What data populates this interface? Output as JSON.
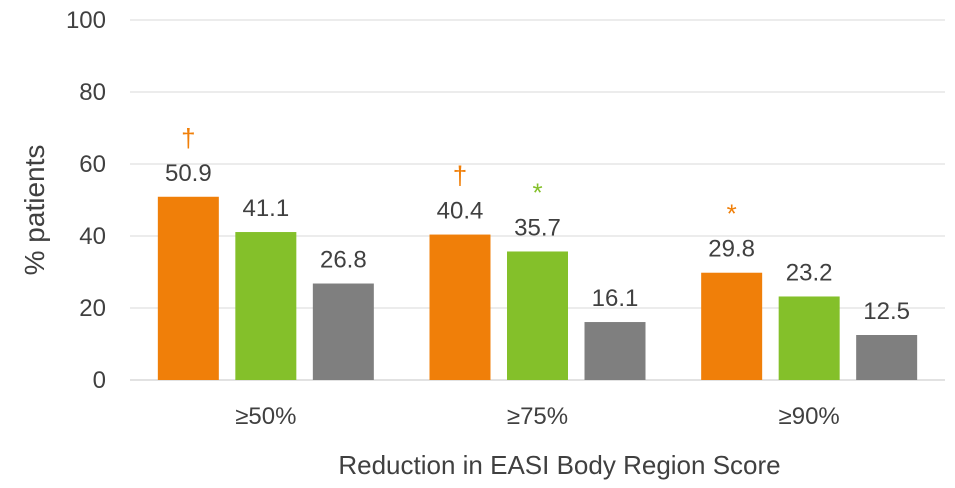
{
  "chart_data": {
    "type": "bar",
    "title": "",
    "xlabel": "Reduction in EASI Body Region Score",
    "ylabel": "% patients",
    "ylim": [
      0,
      100
    ],
    "yticks": [
      0,
      20,
      40,
      60,
      80,
      100
    ],
    "grid": true,
    "legend": "none",
    "categories": [
      "≥50%",
      "≥75%",
      "≥90%"
    ],
    "series": [
      {
        "color": "#F07F09",
        "values": [
          50.9,
          40.4,
          29.8
        ],
        "labels": [
          "50.9",
          "40.4",
          "29.8"
        ],
        "markers": [
          "†",
          "†",
          "*"
        ]
      },
      {
        "color": "#84C02A",
        "values": [
          41.1,
          35.7,
          23.2
        ],
        "labels": [
          "41.1",
          "35.7",
          "23.2"
        ],
        "markers": [
          "",
          "*",
          ""
        ]
      },
      {
        "color": "#7F7F7F",
        "values": [
          26.8,
          16.1,
          12.5
        ],
        "labels": [
          "26.8",
          "16.1",
          "12.5"
        ],
        "markers": [
          "",
          "",
          ""
        ]
      }
    ],
    "colors": {
      "text": "#404040",
      "grid": "#D9D9D9"
    }
  }
}
